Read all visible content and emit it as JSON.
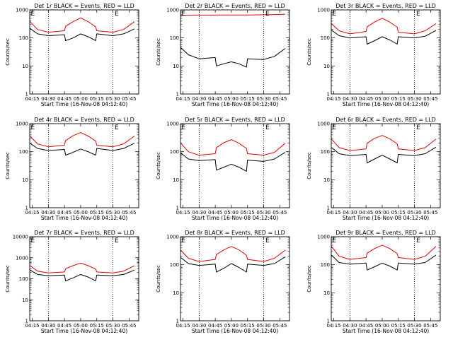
{
  "chart_data": [
    {
      "type": "line",
      "title": "Det 1r BLACK = Events, RED = LLD",
      "xlabel": "Start Time (16-Nov-08 04:12:40)",
      "ylabel": "Counts/sec",
      "yscale": "log",
      "xlim": [
        "04:12:40",
        "05:54:00"
      ],
      "ylim": [
        1,
        1000
      ],
      "x_tick_labels": [
        "04:15",
        "04:30",
        "04:45",
        "05:00",
        "05:15",
        "05:30",
        "05:45"
      ],
      "y_tick_labels": [
        "1",
        "10",
        "100",
        "1000"
      ],
      "vlines": [
        "04:30",
        "05:30"
      ],
      "markers": [
        {
          "label": "E",
          "x": "04:13"
        },
        {
          "label": "E",
          "x": "05:31"
        }
      ],
      "x": [
        "04:13",
        "04:20",
        "04:30",
        "04:45",
        "04:46",
        "04:53",
        "05:00",
        "05:07",
        "05:14",
        "05:15",
        "05:30",
        "05:40",
        "05:50"
      ],
      "series": [
        {
          "color": "#000000",
          "values": [
            220,
            140,
            120,
            130,
            80,
            100,
            140,
            110,
            80,
            140,
            120,
            140,
            210
          ]
        },
        {
          "color": "#e00000",
          "values": [
            380,
            200,
            160,
            180,
            260,
            380,
            520,
            380,
            250,
            180,
            160,
            200,
            380
          ]
        }
      ]
    },
    {
      "type": "line",
      "title": "Det 2r BLACK = Events, RED = LLD",
      "xlabel": "Start Time (16-Nov-08 04:12:40)",
      "ylabel": "Counts/sec",
      "yscale": "log",
      "xlim": [
        "04:12:40",
        "05:54:00"
      ],
      "ylim": [
        1,
        1000
      ],
      "x_tick_labels": [
        "04:15",
        "04:30",
        "04:45",
        "05:00",
        "05:15",
        "05:30",
        "05:45"
      ],
      "y_tick_labels": [
        "1",
        "10",
        "100",
        "1000"
      ],
      "vlines": [
        "04:30",
        "05:30"
      ],
      "markers": [
        {
          "label": "E",
          "x": "04:13"
        },
        {
          "label": "E",
          "x": "05:31"
        }
      ],
      "x": [
        "04:13",
        "04:20",
        "04:30",
        "04:45",
        "04:46",
        "04:53",
        "05:00",
        "05:07",
        "05:14",
        "05:15",
        "05:30",
        "05:40",
        "05:50"
      ],
      "series": [
        {
          "color": "#000000",
          "values": [
            45,
            25,
            18,
            20,
            10,
            12,
            14,
            12,
            9,
            18,
            17,
            22,
            42
          ]
        },
        {
          "color": "#e00000",
          "values": [
            640,
            650,
            650,
            650,
            660,
            660,
            660,
            660,
            660,
            660,
            670,
            680,
            700
          ]
        }
      ]
    },
    {
      "type": "line",
      "title": "Det 3r BLACK = Events, RED = LLD",
      "xlabel": "Start Time (16-Nov-08 04:12:40)",
      "ylabel": "Counts/sec",
      "yscale": "log",
      "xlim": [
        "04:12:40",
        "05:54:00"
      ],
      "ylim": [
        1,
        1000
      ],
      "x_tick_labels": [
        "04:15",
        "04:30",
        "04:45",
        "05:00",
        "05:15",
        "05:30",
        "05:45"
      ],
      "y_tick_labels": [
        "1",
        "10",
        "100",
        "1000"
      ],
      "vlines": [
        "04:30",
        "05:30"
      ],
      "markers": [
        {
          "label": "E",
          "x": "04:13"
        },
        {
          "label": "E",
          "x": "05:31"
        }
      ],
      "x": [
        "04:13",
        "04:20",
        "04:30",
        "04:45",
        "04:46",
        "04:53",
        "05:00",
        "05:07",
        "05:14",
        "05:15",
        "05:30",
        "05:40",
        "05:50"
      ],
      "series": [
        {
          "color": "#000000",
          "values": [
            190,
            120,
            100,
            110,
            60,
            80,
            110,
            85,
            60,
            110,
            100,
            115,
            185
          ]
        },
        {
          "color": "#e00000",
          "values": [
            320,
            180,
            140,
            170,
            250,
            370,
            500,
            370,
            240,
            160,
            140,
            180,
            320
          ]
        }
      ]
    },
    {
      "type": "line",
      "title": "Det 4r BLACK = Events, RED = LLD",
      "xlabel": "Start Time (16-Nov-08 04:12:40)",
      "ylabel": "Counts/sec",
      "yscale": "log",
      "xlim": [
        "04:12:40",
        "05:54:00"
      ],
      "ylim": [
        1,
        1000
      ],
      "x_tick_labels": [
        "04:15",
        "04:30",
        "04:45",
        "05:00",
        "05:15",
        "05:30",
        "05:45"
      ],
      "y_tick_labels": [
        "1",
        "10",
        "100",
        "1000"
      ],
      "vlines": [
        "04:30",
        "05:30"
      ],
      "markers": [
        {
          "label": "E",
          "x": "04:13"
        },
        {
          "label": "E",
          "x": "05:31"
        }
      ],
      "x": [
        "04:13",
        "04:20",
        "04:30",
        "04:45",
        "04:46",
        "04:53",
        "05:00",
        "05:07",
        "05:14",
        "05:15",
        "05:30",
        "05:40",
        "05:50"
      ],
      "series": [
        {
          "color": "#000000",
          "values": [
            200,
            130,
            110,
            120,
            75,
            95,
            125,
            100,
            75,
            130,
            110,
            130,
            200
          ]
        },
        {
          "color": "#e00000",
          "values": [
            360,
            190,
            150,
            170,
            250,
            370,
            480,
            360,
            240,
            170,
            150,
            190,
            360
          ]
        }
      ]
    },
    {
      "type": "line",
      "title": "Det 5r BLACK = Events, RED = LLD",
      "xlabel": "Start Time (16-Nov-08 04:12:40)",
      "ylabel": "Counts/sec",
      "yscale": "log",
      "xlim": [
        "04:12:40",
        "05:54:00"
      ],
      "ylim": [
        1,
        1000
      ],
      "x_tick_labels": [
        "04:15",
        "04:30",
        "04:45",
        "05:00",
        "05:15",
        "05:30",
        "05:45"
      ],
      "y_tick_labels": [
        "1",
        "10",
        "100",
        "1000"
      ],
      "vlines": [
        "04:30",
        "05:30"
      ],
      "markers": [
        {
          "label": "E",
          "x": "04:13"
        },
        {
          "label": "E",
          "x": "05:31"
        }
      ],
      "x": [
        "04:13",
        "04:20",
        "04:30",
        "04:45",
        "04:46",
        "04:53",
        "05:00",
        "05:07",
        "05:14",
        "05:15",
        "05:30",
        "05:40",
        "05:50"
      ],
      "series": [
        {
          "color": "#000000",
          "values": [
            90,
            55,
            48,
            52,
            22,
            28,
            36,
            28,
            20,
            50,
            45,
            55,
            95
          ]
        },
        {
          "color": "#e00000",
          "values": [
            200,
            100,
            75,
            85,
            140,
            210,
            270,
            200,
            130,
            85,
            75,
            95,
            200
          ]
        }
      ]
    },
    {
      "type": "line",
      "title": "Det 6r BLACK = Events, RED = LLD",
      "xlabel": "Start Time (16-Nov-08 04:12:40)",
      "ylabel": "Counts/sec",
      "yscale": "log",
      "xlim": [
        "04:12:40",
        "05:54:00"
      ],
      "ylim": [
        1,
        1000
      ],
      "x_tick_labels": [
        "04:15",
        "04:30",
        "04:45",
        "05:00",
        "05:15",
        "05:30",
        "05:45"
      ],
      "y_tick_labels": [
        "1",
        "10",
        "100",
        "1000"
      ],
      "vlines": [
        "04:30",
        "05:30"
      ],
      "markers": [
        {
          "label": "E",
          "x": "04:13"
        },
        {
          "label": "E",
          "x": "05:31"
        }
      ],
      "x": [
        "04:13",
        "04:20",
        "04:30",
        "04:45",
        "04:46",
        "04:53",
        "05:00",
        "05:07",
        "05:14",
        "05:15",
        "05:30",
        "05:40",
        "05:50"
      ],
      "series": [
        {
          "color": "#000000",
          "values": [
            140,
            85,
            72,
            80,
            40,
            55,
            75,
            55,
            40,
            80,
            72,
            85,
            145
          ]
        },
        {
          "color": "#e00000",
          "values": [
            280,
            140,
            110,
            125,
            200,
            300,
            380,
            290,
            190,
            125,
            110,
            140,
            280
          ]
        }
      ]
    },
    {
      "type": "line",
      "title": "Det 7r BLACK = Events, RED = LLD",
      "xlabel": "Start Time (16-Nov-08 04:12:40)",
      "ylabel": "Counts/sec",
      "yscale": "log",
      "xlim": [
        "04:12:40",
        "05:54:00"
      ],
      "ylim": [
        1,
        10000
      ],
      "x_tick_labels": [
        "04:15",
        "04:30",
        "04:45",
        "05:00",
        "05:15",
        "05:30",
        "05:45"
      ],
      "y_tick_labels": [
        "1",
        "10",
        "100",
        "1000",
        "10000"
      ],
      "vlines": [
        "04:30",
        "05:30"
      ],
      "markers": [
        {
          "label": "E",
          "x": "04:13"
        },
        {
          "label": "E",
          "x": "05:31"
        }
      ],
      "x": [
        "04:13",
        "04:20",
        "04:30",
        "04:45",
        "04:46",
        "04:53",
        "05:00",
        "05:07",
        "05:14",
        "05:15",
        "05:30",
        "05:40",
        "05:50"
      ],
      "series": [
        {
          "color": "#000000",
          "values": [
            260,
            160,
            140,
            150,
            80,
            110,
            160,
            120,
            80,
            150,
            140,
            160,
            260
          ]
        },
        {
          "color": "#e00000",
          "values": [
            420,
            230,
            190,
            210,
            300,
            420,
            560,
            420,
            290,
            210,
            190,
            230,
            420
          ]
        }
      ]
    },
    {
      "type": "line",
      "title": "Det 8r BLACK = Events, RED = LLD",
      "xlabel": "Start Time (16-Nov-08 04:12:40)",
      "ylabel": "Counts/sec",
      "yscale": "log",
      "xlim": [
        "04:12:40",
        "05:54:00"
      ],
      "ylim": [
        1,
        1000
      ],
      "x_tick_labels": [
        "04:15",
        "04:30",
        "04:45",
        "05:00",
        "05:15",
        "05:30",
        "05:45"
      ],
      "y_tick_labels": [
        "1",
        "10",
        "100",
        "1000"
      ],
      "vlines": [
        "04:30",
        "05:30"
      ],
      "markers": [
        {
          "label": "E",
          "x": "04:13"
        },
        {
          "label": "E",
          "x": "05:31"
        }
      ],
      "x": [
        "04:13",
        "04:20",
        "04:30",
        "04:45",
        "04:46",
        "04:53",
        "05:00",
        "05:07",
        "05:14",
        "05:15",
        "05:30",
        "05:40",
        "05:50"
      ],
      "series": [
        {
          "color": "#000000",
          "values": [
            180,
            110,
            95,
            105,
            55,
            75,
            110,
            80,
            55,
            105,
            95,
            110,
            190
          ]
        },
        {
          "color": "#e00000",
          "values": [
            330,
            170,
            130,
            155,
            230,
            340,
            450,
            340,
            220,
            155,
            130,
            170,
            330
          ]
        }
      ]
    },
    {
      "type": "line",
      "title": "Det 9r BLACK = Events, RED = LLD",
      "xlabel": "Start Time (16-Nov-08 04:12:40)",
      "ylabel": "Counts/sec",
      "yscale": "log",
      "xlim": [
        "04:12:40",
        "05:54:00"
      ],
      "ylim": [
        1,
        1000
      ],
      "x_tick_labels": [
        "04:15",
        "04:30",
        "04:45",
        "05:00",
        "05:15",
        "05:30",
        "05:45"
      ],
      "y_tick_labels": [
        "1",
        "10",
        "100",
        "1000"
      ],
      "vlines": [
        "04:30",
        "05:30"
      ],
      "markers": [
        {
          "label": "E",
          "x": "04:13"
        },
        {
          "label": "E",
          "x": "05:31"
        }
      ],
      "x": [
        "04:13",
        "04:20",
        "04:30",
        "04:45",
        "04:46",
        "04:53",
        "05:00",
        "05:07",
        "05:14",
        "05:15",
        "05:30",
        "05:40",
        "05:50"
      ],
      "series": [
        {
          "color": "#000000",
          "values": [
            220,
            120,
            105,
            115,
            65,
            85,
            115,
            90,
            65,
            115,
            105,
            120,
            220
          ]
        },
        {
          "color": "#e00000",
          "values": [
            450,
            200,
            155,
            180,
            260,
            380,
            500,
            380,
            250,
            180,
            155,
            200,
            450
          ]
        }
      ]
    }
  ]
}
